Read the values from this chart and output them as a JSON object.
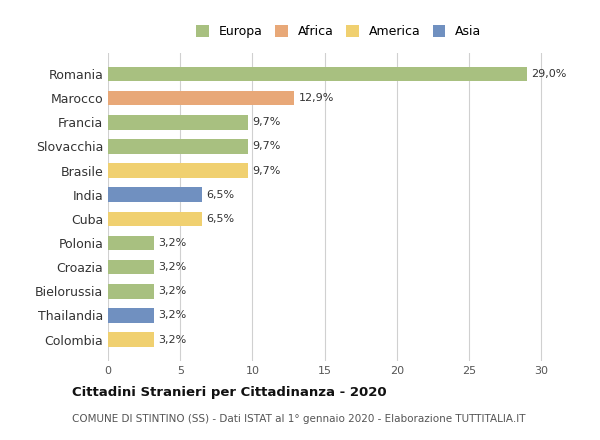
{
  "countries": [
    "Romania",
    "Marocco",
    "Francia",
    "Slovacchia",
    "Brasile",
    "India",
    "Cuba",
    "Polonia",
    "Croazia",
    "Bielorussia",
    "Thailandia",
    "Colombia"
  ],
  "values": [
    29.0,
    12.9,
    9.7,
    9.7,
    9.7,
    6.5,
    6.5,
    3.2,
    3.2,
    3.2,
    3.2,
    3.2
  ],
  "labels": [
    "29,0%",
    "12,9%",
    "9,7%",
    "9,7%",
    "9,7%",
    "6,5%",
    "6,5%",
    "3,2%",
    "3,2%",
    "3,2%",
    "3,2%",
    "3,2%"
  ],
  "continents": [
    "Europa",
    "Africa",
    "Europa",
    "Europa",
    "America",
    "Asia",
    "America",
    "Europa",
    "Europa",
    "Europa",
    "Asia",
    "America"
  ],
  "continent_colors": {
    "Europa": "#a8c080",
    "Africa": "#e8a878",
    "America": "#f0d070",
    "Asia": "#7090c0"
  },
  "legend_order": [
    "Europa",
    "Africa",
    "America",
    "Asia"
  ],
  "title": "Cittadini Stranieri per Cittadinanza - 2020",
  "subtitle": "COMUNE DI STINTINO (SS) - Dati ISTAT al 1° gennaio 2020 - Elaborazione TUTTITALIA.IT",
  "xlim": [
    0,
    32
  ],
  "xticks": [
    0,
    5,
    10,
    15,
    20,
    25,
    30
  ],
  "background_color": "#ffffff",
  "grid_color": "#d0d0d0",
  "bar_height": 0.6
}
